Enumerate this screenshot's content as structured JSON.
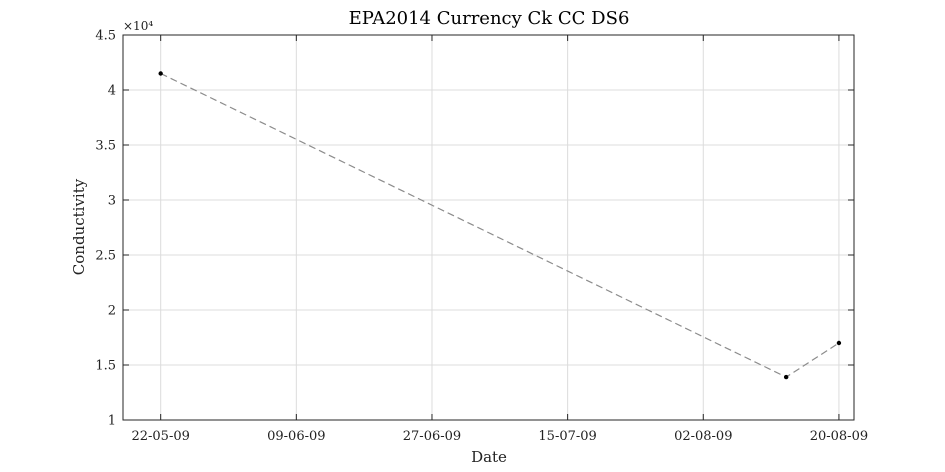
{
  "chart_data": {
    "type": "line",
    "title": "EPA2014 Currency Ck CC DS6",
    "xlabel": "Date",
    "ylabel": "Conductivity",
    "y_exponent_label": "×10⁴",
    "y_exponent_value": 10000,
    "xlim": [
      "2009-05-17",
      "2009-08-22"
    ],
    "ylim": [
      10000,
      45000
    ],
    "x_ticks": [
      {
        "date": "2009-05-22",
        "label": "22-05-09"
      },
      {
        "date": "2009-06-09",
        "label": "09-06-09"
      },
      {
        "date": "2009-06-27",
        "label": "27-06-09"
      },
      {
        "date": "2009-07-15",
        "label": "15-07-09"
      },
      {
        "date": "2009-08-02",
        "label": "02-08-09"
      },
      {
        "date": "2009-08-20",
        "label": "20-08-09"
      }
    ],
    "y_ticks": [
      {
        "value": 10000,
        "label": "1"
      },
      {
        "value": 15000,
        "label": "1.5"
      },
      {
        "value": 20000,
        "label": "2"
      },
      {
        "value": 25000,
        "label": "2.5"
      },
      {
        "value": 30000,
        "label": "3"
      },
      {
        "value": 35000,
        "label": "3.5"
      },
      {
        "value": 40000,
        "label": "4"
      },
      {
        "value": 45000,
        "label": "4.5"
      }
    ],
    "grid": true,
    "series": [
      {
        "x": [
          "2009-05-22",
          "2009-08-13",
          "2009-08-20"
        ],
        "y": [
          41500,
          13900,
          17000
        ]
      }
    ],
    "colors": {
      "line": "#8c8c8c",
      "marker": "#000000",
      "grid": "#dcdcdc",
      "axis": "#262626"
    }
  }
}
